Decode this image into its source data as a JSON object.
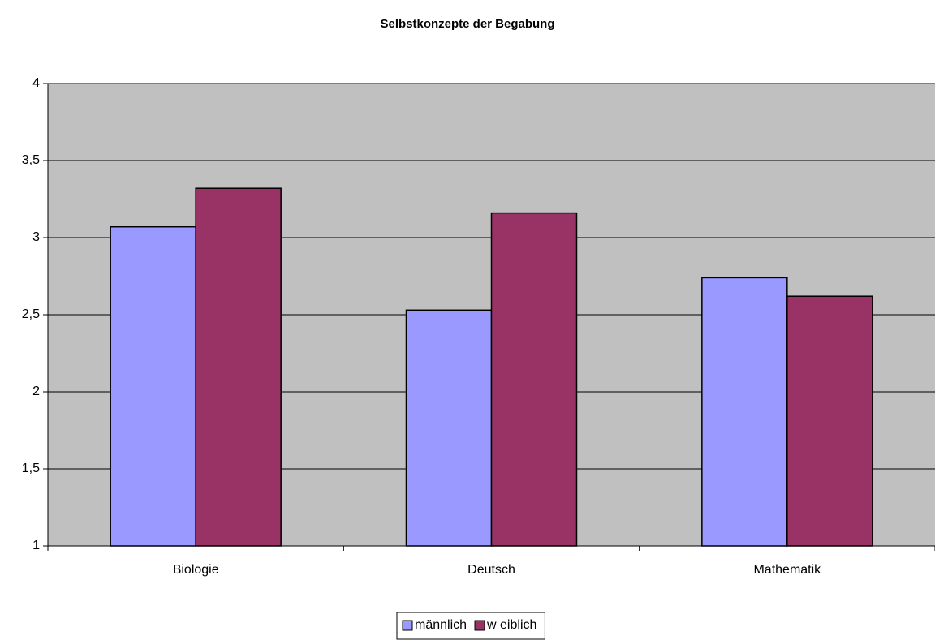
{
  "chart_data": {
    "type": "bar",
    "title": "Selbstkonzepte der Begabung",
    "categories": [
      "Biologie",
      "Deutsch",
      "Mathematik"
    ],
    "series": [
      {
        "name": "männlich",
        "color": "#9999ff",
        "values": [
          3.07,
          2.53,
          2.74
        ]
      },
      {
        "name": "w eiblich",
        "color": "#993366",
        "values": [
          3.32,
          3.16,
          2.62
        ]
      }
    ],
    "ylim": [
      1,
      4
    ],
    "yticks": [
      1,
      {
        "value": 1.5,
        "label": "1,5"
      },
      2,
      {
        "value": 2.5,
        "label": "2,5"
      },
      3,
      {
        "value": 3.5,
        "label": "3,5"
      },
      4
    ],
    "grid": true,
    "legend": "bottom"
  }
}
